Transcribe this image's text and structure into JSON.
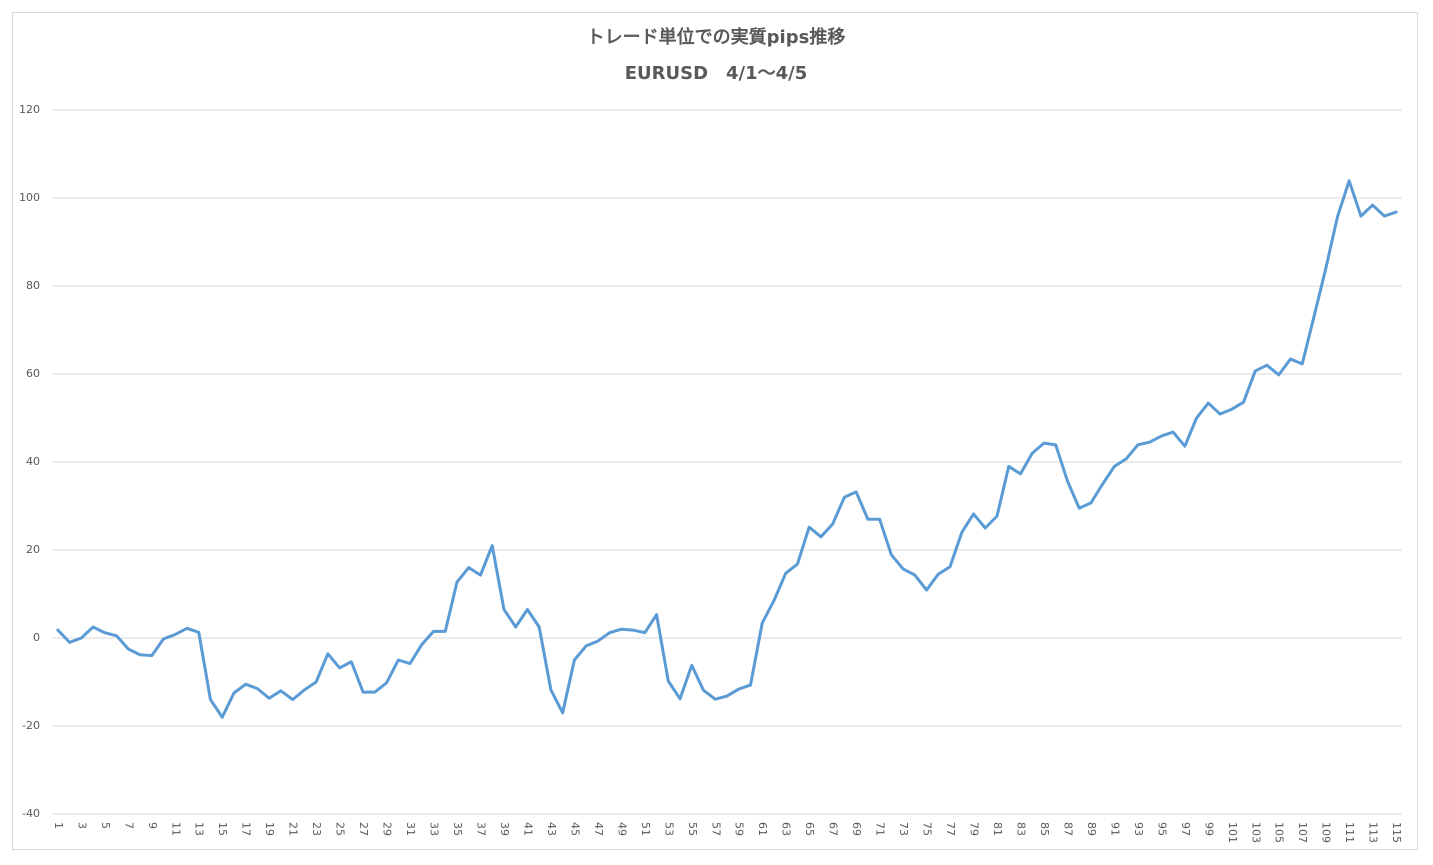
{
  "chart_data": {
    "type": "line",
    "title": "トレード単位での実質pips推移",
    "subtitle": "EURUSD　4/1～4/5",
    "categories": [
      "1",
      null,
      "3",
      null,
      "5",
      null,
      "7",
      null,
      "9",
      null,
      "11",
      null,
      "13",
      null,
      "15",
      null,
      "17",
      null,
      "19",
      null,
      "21",
      null,
      "23",
      null,
      "25",
      null,
      "27",
      null,
      "29",
      null,
      "31",
      null,
      "33",
      null,
      "35",
      null,
      "37",
      null,
      "39",
      null,
      "41",
      null,
      "43",
      null,
      "45",
      null,
      "47",
      null,
      "49",
      null,
      "51",
      null,
      "53",
      null,
      "55",
      null,
      "57",
      null,
      "59",
      null,
      "61",
      null,
      "63",
      null,
      "65",
      null,
      "67",
      null,
      "69",
      null,
      "71",
      null,
      "73",
      null,
      "75",
      null,
      "77",
      null,
      "79",
      null,
      "81",
      null,
      "83",
      null,
      "85",
      null,
      "87",
      null,
      "89",
      null,
      "91",
      null,
      "93",
      null,
      "95",
      null,
      "97",
      null,
      "99",
      null,
      "101",
      null,
      "103",
      null,
      "105",
      null,
      "107",
      null,
      "109",
      null,
      "111",
      null,
      "113",
      null,
      "115"
    ],
    "values": [
      1.8,
      -1,
      0,
      2.5,
      1.2,
      0.5,
      -2.5,
      -3.8,
      -4,
      -0.2,
      0.8,
      2.2,
      1.3,
      -14,
      -18,
      -12.5,
      -10.5,
      -11.5,
      -13.7,
      -12,
      -14,
      -11.8,
      -10,
      -3.6,
      -6.8,
      -5.4,
      -12.3,
      -12.3,
      -10.2,
      -5,
      -5.8,
      -1.5,
      1.5,
      1.5,
      12.7,
      16,
      14.3,
      21,
      6.5,
      2.5,
      6.5,
      2.5,
      -11.8,
      -17,
      -5,
      -1.8,
      -0.7,
      1.2,
      2,
      1.8,
      1.2,
      5.3,
      -9.8,
      -13.8,
      -6.2,
      -11.9,
      -13.9,
      -13.2,
      -11.6,
      -10.7,
      3.4,
      8.5,
      14.7,
      16.8,
      25.2,
      23,
      25.9,
      32,
      33.2,
      27,
      27,
      18.9,
      15.7,
      14.3,
      10.9,
      14.5,
      16.2,
      24,
      28.2,
      25,
      27.7,
      39,
      37.3,
      42,
      44.3,
      43.9,
      35.7,
      29.5,
      30.7,
      35,
      39,
      40.7,
      43.9,
      44.5,
      45.9,
      46.8,
      43.6,
      50,
      53.4,
      50.9,
      52,
      53.6,
      60.7,
      62,
      59.8,
      63.4,
      62.3,
      73,
      83.9,
      95.7,
      103.9,
      95.9,
      98.4,
      95.9,
      96.8
    ],
    "color": "#5b9bd5",
    "ylim": [
      -40,
      120
    ],
    "yticks": [
      -40,
      -20,
      0,
      20,
      40,
      60,
      80,
      100,
      120
    ],
    "grid": true
  }
}
